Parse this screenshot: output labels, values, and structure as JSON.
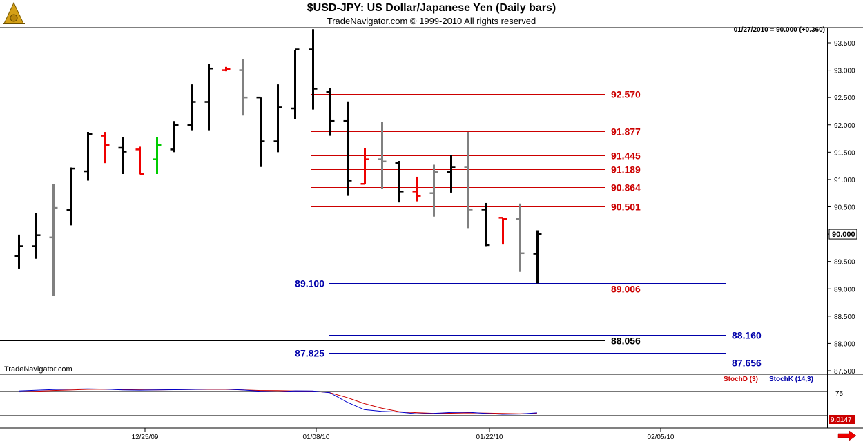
{
  "header": {
    "title": "$USD-JPY:  US Dollar/Japanese Yen  (Daily bars)",
    "subtitle": "TradeNavigator.com © 1999-2010 All rights reserved",
    "quote": "01/27/2010 = 90.000 (+0.360)"
  },
  "brand": "TradeNavigator.com",
  "indicators": {
    "d_label": "StochD (3)",
    "k_label": "StochK (14,3)",
    "value": "9.0147"
  },
  "colors": {
    "up": "#000000",
    "down": "#808080",
    "highlight_red": "#ee0000",
    "highlight_green": "#00cc00",
    "resistance": "#cc0000",
    "support": "#0000aa",
    "neutral": "#000000"
  },
  "chart_data": {
    "type": "ohlc",
    "y_axis": {
      "min": 87.5,
      "max": 93.75,
      "ticks": [
        "93.500",
        "93.000",
        "92.500",
        "92.000",
        "91.500",
        "91.000",
        "90.500",
        "90.000",
        "89.500",
        "89.000",
        "88.500",
        "88.000",
        "87.500"
      ]
    },
    "x_axis": {
      "ticks": [
        "12/25/09",
        "01/08/10",
        "01/22/10",
        "02/05/10"
      ]
    },
    "last_price": "90.000",
    "bars": [
      {
        "o": 89.6,
        "h": 89.99,
        "l": 89.37,
        "c": 89.78,
        "col": "up"
      },
      {
        "o": 89.78,
        "h": 90.39,
        "l": 89.55,
        "c": 89.98,
        "col": "up"
      },
      {
        "o": 89.94,
        "h": 90.92,
        "l": 88.87,
        "c": 90.48,
        "col": "down"
      },
      {
        "o": 90.44,
        "h": 91.22,
        "l": 90.16,
        "c": 91.2,
        "col": "up"
      },
      {
        "o": 91.15,
        "h": 91.87,
        "l": 90.98,
        "c": 91.83,
        "col": "up"
      },
      {
        "o": 91.8,
        "h": 91.87,
        "l": 91.3,
        "c": 91.63,
        "col": "red"
      },
      {
        "o": 91.58,
        "h": 91.77,
        "l": 91.1,
        "c": 91.51,
        "col": "up"
      },
      {
        "o": 91.55,
        "h": 91.6,
        "l": 91.1,
        "c": 91.1,
        "col": "red"
      },
      {
        "o": 91.37,
        "h": 91.77,
        "l": 91.1,
        "c": 91.63,
        "col": "green"
      },
      {
        "o": 91.55,
        "h": 92.07,
        "l": 91.5,
        "c": 92.0,
        "col": "up"
      },
      {
        "o": 92.0,
        "h": 92.74,
        "l": 91.9,
        "c": 92.42,
        "col": "up"
      },
      {
        "o": 92.42,
        "h": 93.12,
        "l": 91.9,
        "c": 93.03,
        "col": "up"
      },
      {
        "o": 93.0,
        "h": 93.06,
        "l": 92.98,
        "c": 93.02,
        "col": "red"
      },
      {
        "o": 93.0,
        "h": 93.2,
        "l": 92.17,
        "c": 92.5,
        "col": "down"
      },
      {
        "o": 92.5,
        "h": 92.5,
        "l": 91.23,
        "c": 91.7,
        "col": "up"
      },
      {
        "o": 91.7,
        "h": 92.74,
        "l": 91.5,
        "c": 92.32,
        "col": "up"
      },
      {
        "o": 92.3,
        "h": 93.37,
        "l": 92.1,
        "c": 93.38,
        "col": "up"
      },
      {
        "o": 93.38,
        "h": 93.75,
        "l": 92.28,
        "c": 92.66,
        "col": "up"
      },
      {
        "o": 92.6,
        "h": 92.67,
        "l": 91.8,
        "c": 92.07,
        "col": "up"
      },
      {
        "o": 92.07,
        "h": 92.43,
        "l": 90.7,
        "c": 90.98,
        "col": "up"
      },
      {
        "o": 90.92,
        "h": 91.57,
        "l": 90.92,
        "c": 91.37,
        "col": "red"
      },
      {
        "o": 91.37,
        "h": 92.05,
        "l": 90.83,
        "c": 91.33,
        "col": "down"
      },
      {
        "o": 91.3,
        "h": 91.34,
        "l": 90.58,
        "c": 90.78,
        "col": "up"
      },
      {
        "o": 90.78,
        "h": 91.05,
        "l": 90.6,
        "c": 90.7,
        "col": "red"
      },
      {
        "o": 90.75,
        "h": 91.27,
        "l": 90.32,
        "c": 91.14,
        "col": "down"
      },
      {
        "o": 91.14,
        "h": 91.45,
        "l": 90.76,
        "c": 91.22,
        "col": "up"
      },
      {
        "o": 91.22,
        "h": 91.87,
        "l": 90.11,
        "c": 90.45,
        "col": "down"
      },
      {
        "o": 90.45,
        "h": 90.57,
        "l": 89.78,
        "c": 89.8,
        "col": "up"
      },
      {
        "o": 90.3,
        "h": 90.3,
        "l": 89.81,
        "c": 90.28,
        "col": "red"
      },
      {
        "o": 90.28,
        "h": 90.56,
        "l": 89.31,
        "c": 89.65,
        "col": "down"
      },
      {
        "o": 89.64,
        "h": 90.07,
        "l": 89.1,
        "c": 90.0,
        "col": "up"
      }
    ],
    "levels": [
      {
        "price": 92.57,
        "label": "92.570",
        "color": "resistance",
        "x1": 451,
        "x2": 877,
        "label_x": 885,
        "label_side": "right"
      },
      {
        "price": 91.877,
        "label": "91.877",
        "color": "resistance",
        "x1": 451,
        "x2": 877,
        "label_x": 885,
        "label_side": "right"
      },
      {
        "price": 91.445,
        "label": "91.445",
        "color": "resistance",
        "x1": 451,
        "x2": 877,
        "label_x": 885,
        "label_side": "right"
      },
      {
        "price": 91.189,
        "label": "91.189",
        "color": "resistance",
        "x1": 451,
        "x2": 877,
        "label_x": 885,
        "label_side": "right"
      },
      {
        "price": 90.864,
        "label": "90.864",
        "color": "resistance",
        "x1": 451,
        "x2": 877,
        "label_x": 885,
        "label_side": "right"
      },
      {
        "price": 90.501,
        "label": "90.501",
        "color": "resistance",
        "x1": 451,
        "x2": 877,
        "label_x": 885,
        "label_side": "right"
      },
      {
        "price": 89.1,
        "label": "89.100",
        "color": "support",
        "x1": 476,
        "x2": 1051,
        "label_x": 470,
        "label_side": "left"
      },
      {
        "price": 89.006,
        "label": "89.006",
        "color": "resistance",
        "x1": 0,
        "x2": 877,
        "label_x": 885,
        "label_side": "right"
      },
      {
        "price": 88.16,
        "label": "88.160",
        "color": "support",
        "x1": 476,
        "x2": 1051,
        "label_x": 1060,
        "label_side": "right"
      },
      {
        "price": 88.056,
        "label": "88.056",
        "color": "neutral",
        "x1": 0,
        "x2": 877,
        "label_x": 885,
        "label_side": "right"
      },
      {
        "price": 87.825,
        "label": "87.825",
        "color": "support",
        "x1": 476,
        "x2": 1051,
        "label_x": 470,
        "label_side": "left"
      },
      {
        "price": 87.656,
        "label": "87.656",
        "color": "support",
        "x1": 476,
        "x2": 1051,
        "label_x": 1060,
        "label_side": "right"
      }
    ],
    "oscillator": {
      "ticks": [
        "75"
      ],
      "stochD": [
        73.5,
        74.3,
        75.4,
        76.0,
        76.8,
        77.0,
        76.5,
        76.3,
        76.1,
        76.5,
        76.7,
        76.8,
        76.8,
        76.2,
        75.4,
        75.3,
        74.7,
        74.5,
        72.6,
        66.0,
        58.0,
        52.0,
        47.4,
        46.0,
        45.1,
        45.2,
        45.7,
        45.5,
        45.0,
        44.6,
        44.9
      ],
      "stochK": [
        74.8,
        75.6,
        76.6,
        77.2,
        77.5,
        77.2,
        76.2,
        75.8,
        76.1,
        76.4,
        76.7,
        77.2,
        77.2,
        76.0,
        74.4,
        73.6,
        74.9,
        74.8,
        72.5,
        60.0,
        50.0,
        47.7,
        46.8,
        44.6,
        45.0,
        46.2,
        46.6,
        45.0,
        43.8,
        44.2,
        45.8
      ]
    }
  }
}
